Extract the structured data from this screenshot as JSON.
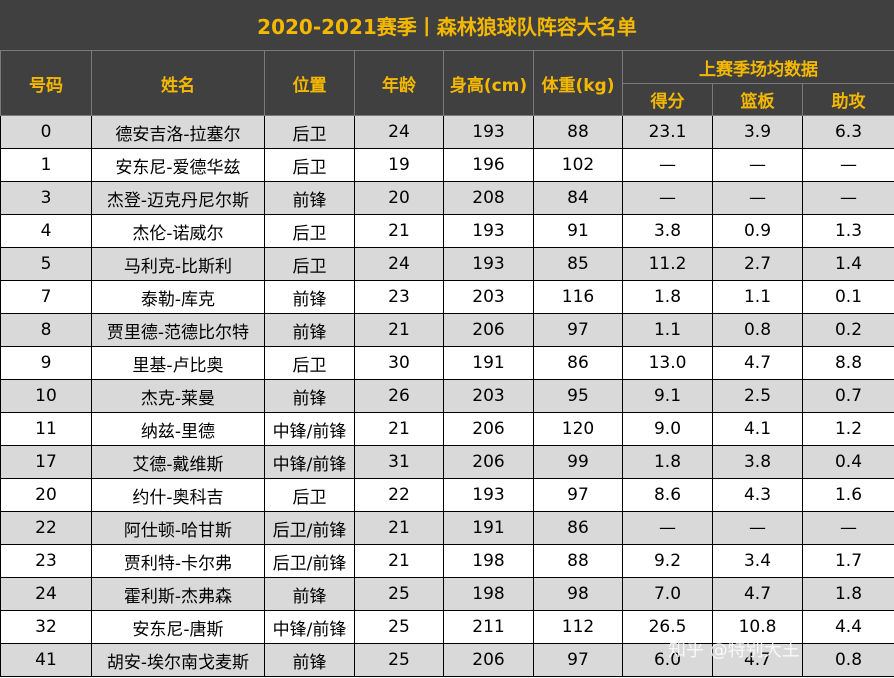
{
  "title": "2020-2021赛季丨森林狼球队阵容大名单",
  "headers": {
    "number": "号码",
    "name": "姓名",
    "position": "位置",
    "age": "年龄",
    "height": "身高(cm)",
    "weight": "体重(kg)",
    "last_season": "上赛季场均数据",
    "points": "得分",
    "rebounds": "篮板",
    "assists": "助攻"
  },
  "rows": [
    {
      "number": "0",
      "name": "德安吉洛-拉塞尔",
      "position": "后卫",
      "age": "24",
      "height": "193",
      "weight": "88",
      "points": "23.1",
      "rebounds": "3.9",
      "assists": "6.3"
    },
    {
      "number": "1",
      "name": "安东尼-爱德华兹",
      "position": "后卫",
      "age": "19",
      "height": "196",
      "weight": "102",
      "points": "—",
      "rebounds": "—",
      "assists": "—"
    },
    {
      "number": "3",
      "name": "杰登-迈克丹尼尔斯",
      "position": "前锋",
      "age": "20",
      "height": "208",
      "weight": "84",
      "points": "—",
      "rebounds": "—",
      "assists": "—"
    },
    {
      "number": "4",
      "name": "杰伦-诺威尔",
      "position": "后卫",
      "age": "21",
      "height": "193",
      "weight": "91",
      "points": "3.8",
      "rebounds": "0.9",
      "assists": "1.3"
    },
    {
      "number": "5",
      "name": "马利克-比斯利",
      "position": "后卫",
      "age": "24",
      "height": "193",
      "weight": "85",
      "points": "11.2",
      "rebounds": "2.7",
      "assists": "1.4"
    },
    {
      "number": "7",
      "name": "泰勒-库克",
      "position": "前锋",
      "age": "23",
      "height": "203",
      "weight": "116",
      "points": "1.8",
      "rebounds": "1.1",
      "assists": "0.1"
    },
    {
      "number": "8",
      "name": "贾里德-范德比尔特",
      "position": "前锋",
      "age": "21",
      "height": "206",
      "weight": "97",
      "points": "1.1",
      "rebounds": "0.8",
      "assists": "0.2"
    },
    {
      "number": "9",
      "name": "里基-卢比奥",
      "position": "后卫",
      "age": "30",
      "height": "191",
      "weight": "86",
      "points": "13.0",
      "rebounds": "4.7",
      "assists": "8.8"
    },
    {
      "number": "10",
      "name": "杰克-莱曼",
      "position": "前锋",
      "age": "26",
      "height": "203",
      "weight": "95",
      "points": "9.1",
      "rebounds": "2.5",
      "assists": "0.7"
    },
    {
      "number": "11",
      "name": "纳兹-里德",
      "position": "中锋/前锋",
      "age": "21",
      "height": "206",
      "weight": "120",
      "points": "9.0",
      "rebounds": "4.1",
      "assists": "1.2"
    },
    {
      "number": "17",
      "name": "艾德-戴维斯",
      "position": "中锋/前锋",
      "age": "31",
      "height": "206",
      "weight": "99",
      "points": "1.8",
      "rebounds": "3.8",
      "assists": "0.4"
    },
    {
      "number": "20",
      "name": "约什-奥科吉",
      "position": "后卫",
      "age": "22",
      "height": "193",
      "weight": "97",
      "points": "8.6",
      "rebounds": "4.3",
      "assists": "1.6"
    },
    {
      "number": "22",
      "name": "阿仕顿-哈甘斯",
      "position": "后卫/前锋",
      "age": "21",
      "height": "191",
      "weight": "86",
      "points": "—",
      "rebounds": "—",
      "assists": "—"
    },
    {
      "number": "23",
      "name": "贾利特-卡尔弗",
      "position": "后卫/前锋",
      "age": "21",
      "height": "198",
      "weight": "88",
      "points": "9.2",
      "rebounds": "3.4",
      "assists": "1.7"
    },
    {
      "number": "24",
      "name": "霍利斯-杰弗森",
      "position": "前锋",
      "age": "25",
      "height": "198",
      "weight": "98",
      "points": "7.0",
      "rebounds": "4.7",
      "assists": "1.8"
    },
    {
      "number": "32",
      "name": "安东尼-唐斯",
      "position": "中锋/前锋",
      "age": "25",
      "height": "211",
      "weight": "112",
      "points": "26.5",
      "rebounds": "10.8",
      "assists": "4.4"
    },
    {
      "number": "41",
      "name": "胡安-埃尔南戈麦斯",
      "position": "前锋",
      "age": "25",
      "height": "206",
      "weight": "97",
      "points": "6.0",
      "rebounds": "4.7",
      "assists": "0.8"
    }
  ],
  "watermark": "知乎 @特别大王",
  "colors": {
    "header_bg": "#404040",
    "header_text": "#f5b800",
    "stripe": "#d9d9d9"
  }
}
